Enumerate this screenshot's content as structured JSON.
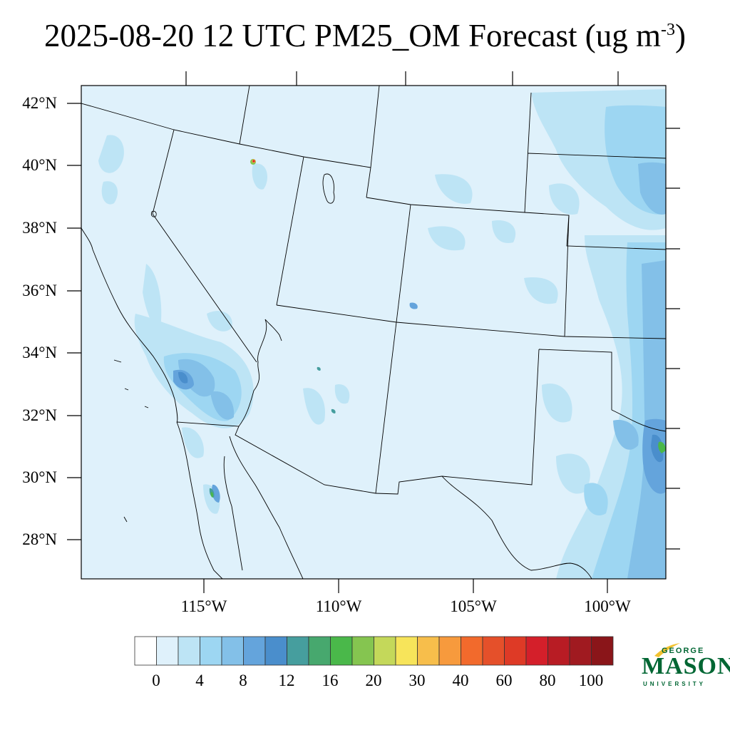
{
  "title": {
    "main": "2025-08-20 12 UTC PM25_OM Forecast (ug m",
    "exponent": "-3",
    "close": ")"
  },
  "map": {
    "background_color": "#dff1fb",
    "boundary_color": "#000000",
    "lat_labels": [
      "42°N",
      "40°N",
      "38°N",
      "36°N",
      "34°N",
      "32°N",
      "30°N",
      "28°N"
    ],
    "lon_labels": [
      "115°W",
      "110°W",
      "105°W",
      "100°W"
    ]
  },
  "colorbar": {
    "labels": [
      "0",
      "4",
      "8",
      "12",
      "16",
      "20",
      "30",
      "40",
      "60",
      "80",
      "100"
    ],
    "colors": [
      "#ffffff",
      "#dff1fb",
      "#bde4f5",
      "#9dd6f2",
      "#83c0e8",
      "#64a4dc",
      "#4a8ecc",
      "#469e9e",
      "#47a86e",
      "#4ab84a",
      "#85c550",
      "#c4d85a",
      "#f7e45a",
      "#f7be4b",
      "#f79a3d",
      "#f26a2c",
      "#e5502a",
      "#de3a26",
      "#d41f2a",
      "#b81c24",
      "#a01a20",
      "#8a1519"
    ]
  },
  "logo": {
    "top_text": "GEORGE",
    "main_text": "MASON",
    "bottom_text": "UNIVERSITY"
  }
}
